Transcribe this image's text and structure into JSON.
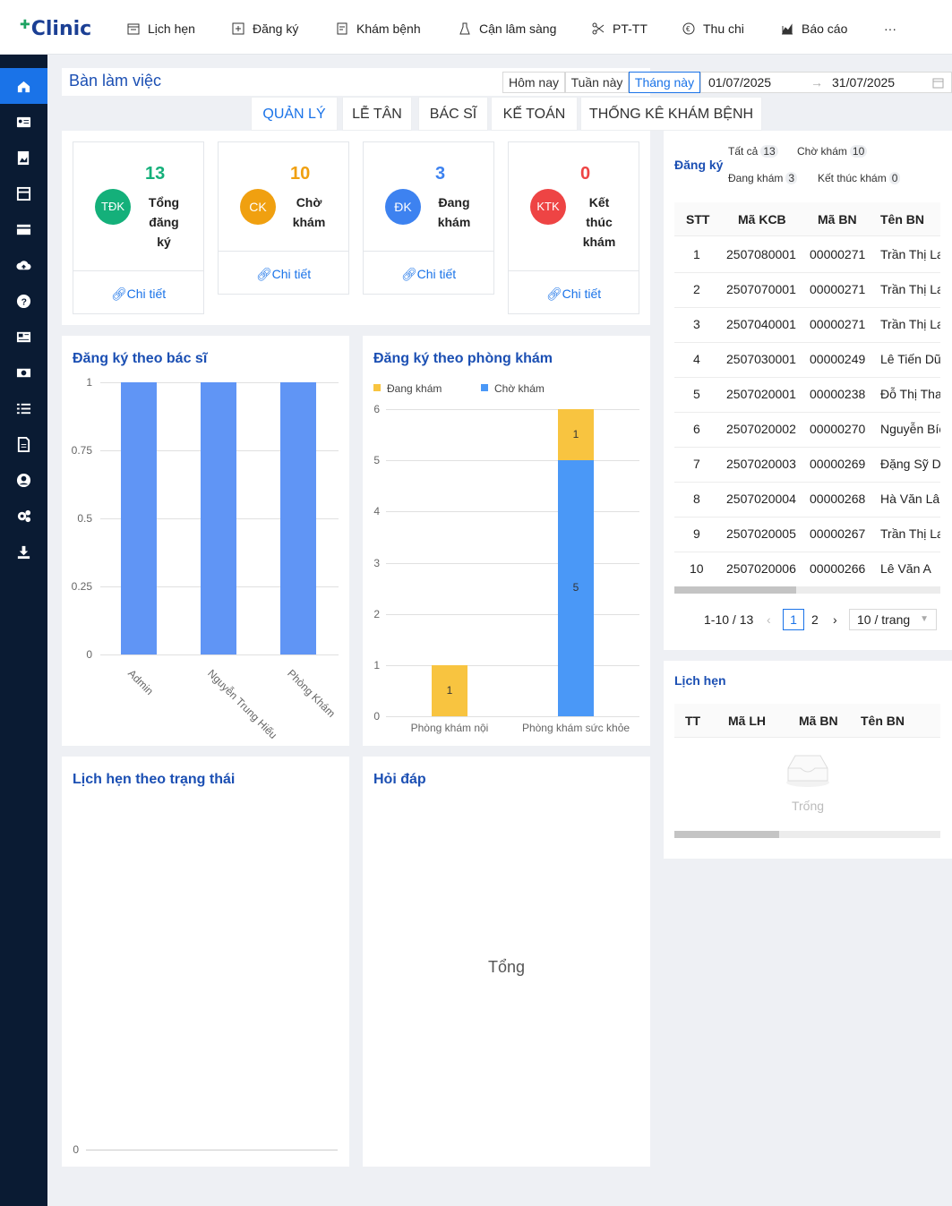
{
  "app": {
    "logo": "Clinic"
  },
  "nav": [
    {
      "label": "Lịch hẹn",
      "icon": "calendar-icon"
    },
    {
      "label": "Đăng ký",
      "icon": "plus-square-icon"
    },
    {
      "label": "Khám bệnh",
      "icon": "clipboard-icon"
    },
    {
      "label": "Cận lâm sàng",
      "icon": "flask-icon"
    },
    {
      "label": "PT-TT",
      "icon": "scissors-icon"
    },
    {
      "label": "Thu chi",
      "icon": "euro-icon"
    },
    {
      "label": "Báo cáo",
      "icon": "chart-icon"
    },
    {
      "label": "···",
      "icon": "more-icon"
    }
  ],
  "sidebar": [
    "home-icon",
    "id-card-icon",
    "image-icon",
    "store-icon",
    "card-icon",
    "cloud-upload-icon",
    "question-icon",
    "news-icon",
    "money-icon",
    "list-icon",
    "file-icon",
    "user-circle-icon",
    "settings-icon",
    "download-icon"
  ],
  "workspace": {
    "title": "Bàn làm việc",
    "today": "Hôm nay",
    "week": "Tuần này",
    "month": "Tháng này",
    "date_from": "01/07/2025",
    "date_to": "31/07/2025"
  },
  "tabs": [
    "QUẢN LÝ",
    "LỄ TÂN",
    "BÁC SĨ",
    "KẾ TOÁN",
    "THỐNG KÊ KHÁM BỆNH"
  ],
  "stats": [
    {
      "num": "13",
      "badge": "TĐK",
      "l1": "Tổng",
      "l2": "đăng",
      "l3": "ký",
      "link": "Chi tiết",
      "color": "#14b07a"
    },
    {
      "num": "10",
      "badge": "CK",
      "l1": "Chờ",
      "l2": "khám",
      "l3": "",
      "link": "Chi tiết",
      "color": "#f0a010"
    },
    {
      "num": "3",
      "badge": "ĐK",
      "l1": "Đang",
      "l2": "khám",
      "l3": "",
      "link": "Chi tiết",
      "color": "#3d82f0"
    },
    {
      "num": "0",
      "badge": "KTK",
      "l1": "Kết",
      "l2": "thúc",
      "l3": "khám",
      "link": "Chi tiết",
      "color": "#ee4444"
    }
  ],
  "chart_doctor": {
    "title": "Đăng ký theo bác sĩ",
    "chart_data": {
      "type": "bar",
      "categories": [
        "Admin",
        "Nguyễn Trung Hiếu",
        "Phòng Khám"
      ],
      "values": [
        1,
        1,
        1
      ],
      "yticks": [
        "1",
        "0.75",
        "0.5",
        "0.25",
        "0"
      ],
      "ylim": [
        0,
        1
      ]
    }
  },
  "chart_room": {
    "title": "Đăng ký theo phòng khám",
    "legend": [
      "Đang khám",
      "Chờ khám"
    ],
    "chart_data": {
      "type": "bar",
      "stacked": true,
      "categories": [
        "Phòng khám nội",
        "Phòng khám sức khỏe"
      ],
      "series": [
        {
          "name": "Đang khám",
          "values": [
            1,
            1
          ]
        },
        {
          "name": "Chờ khám",
          "values": [
            0,
            5
          ]
        }
      ],
      "yticks": [
        "6",
        "5",
        "4",
        "3",
        "2",
        "1",
        "0"
      ],
      "ylim": [
        0,
        6
      ]
    }
  },
  "chart_status": {
    "title": "Lịch hẹn theo trạng thái",
    "zero": "0"
  },
  "qa": {
    "title": "Hỏi đáp",
    "center": "Tổng"
  },
  "register": {
    "title": "Đăng ký",
    "filters": [
      {
        "l": "Tất cả",
        "c": "13"
      },
      {
        "l": "Chờ khám",
        "c": "10"
      },
      {
        "l": "Đang khám",
        "c": "3"
      },
      {
        "l": "Kết thúc khám",
        "c": "0"
      }
    ],
    "headers": [
      "STT",
      "Mã KCB",
      "Mã BN",
      "Tên BN"
    ],
    "rows": [
      [
        "1",
        "2507080001",
        "00000271",
        "Trần Thị Lan"
      ],
      [
        "2",
        "2507070001",
        "00000271",
        "Trần Thị Lan"
      ],
      [
        "3",
        "2507040001",
        "00000271",
        "Trần Thị Lan"
      ],
      [
        "4",
        "2507030001",
        "00000249",
        "Lê Tiến Dũng"
      ],
      [
        "5",
        "2507020001",
        "00000238",
        "Đỗ Thị Thanh"
      ],
      [
        "6",
        "2507020002",
        "00000270",
        "Nguyễn Bích"
      ],
      [
        "7",
        "2507020003",
        "00000269",
        "Đặng Sỹ Dũng"
      ],
      [
        "8",
        "2507020004",
        "00000268",
        "Hà Văn Lâm"
      ],
      [
        "9",
        "2507020005",
        "00000267",
        "Trần Thị Lan"
      ],
      [
        "10",
        "2507020006",
        "00000266",
        "Lê Văn A"
      ]
    ],
    "range": "1-10 / 13",
    "page1": "1",
    "page2": "2",
    "pagesize": "10 / trang"
  },
  "appointments": {
    "title": "Lịch hẹn",
    "headers": [
      "TT",
      "Mã LH",
      "Mã BN",
      "Tên BN"
    ],
    "empty": "Trống"
  }
}
